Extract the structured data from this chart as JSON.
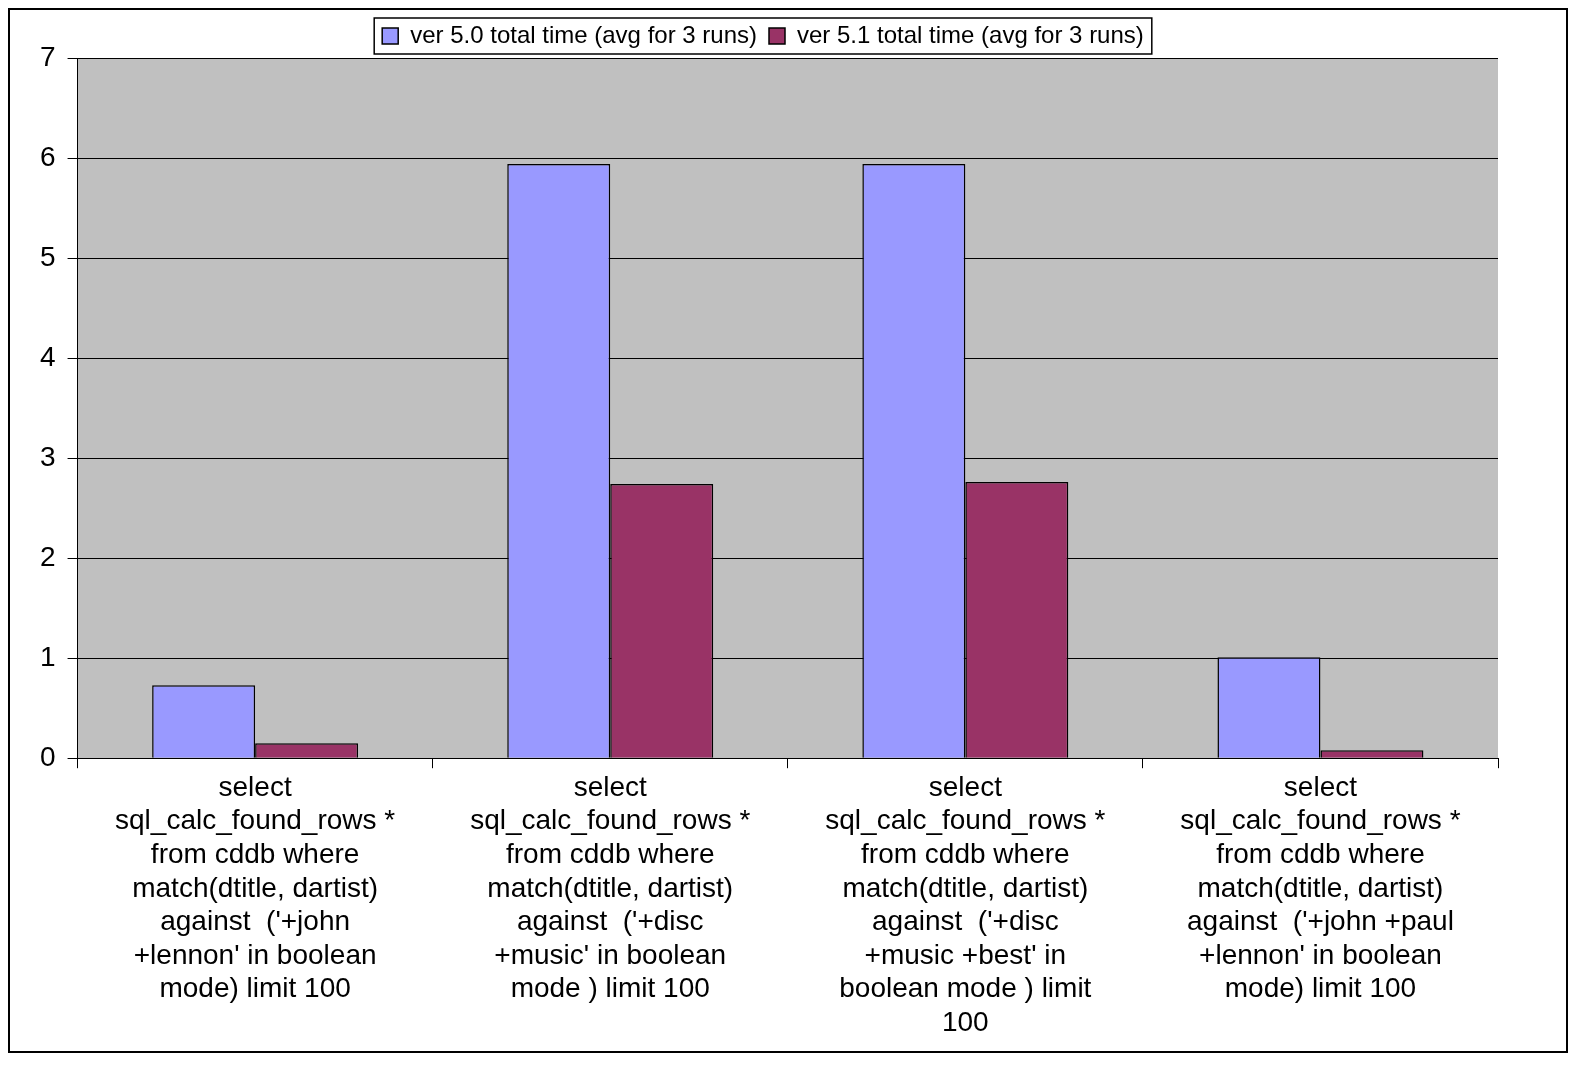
{
  "chart_data": {
    "type": "bar",
    "categories": [
      "select sql_calc_found_rows * from cddb where match(dtitle, dartist) against  ('+john +lennon' in boolean mode) limit 100",
      "select sql_calc_found_rows * from cddb where match(dtitle, dartist) against  ('+disc +music' in boolean mode ) limit 100",
      "select sql_calc_found_rows * from cddb where match(dtitle, dartist) against  ('+disc +music +best' in boolean mode ) limit 100",
      "select sql_calc_found_rows * from cddb where match(dtitle, dartist) against  ('+john +paul +lennon' in boolean mode) limit 100"
    ],
    "series": [
      {
        "name": "ver 5.0 total time (avg for 3 runs)",
        "color": "#9999ff",
        "values": [
          0.73,
          5.94,
          5.94,
          1.01
        ]
      },
      {
        "name": "ver 5.1 total time (avg for 3 runs)",
        "color": "#993366",
        "values": [
          0.15,
          2.74,
          2.76,
          0.08
        ]
      }
    ],
    "ylim": [
      0,
      7
    ],
    "yticks": [
      0,
      1,
      2,
      3,
      4,
      5,
      6,
      7
    ],
    "grid": "y",
    "legend": "top"
  }
}
